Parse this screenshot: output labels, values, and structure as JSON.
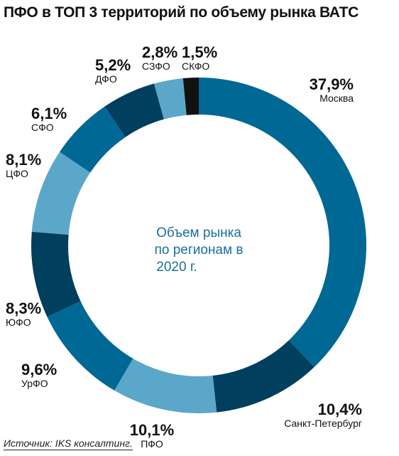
{
  "title": "ПФО в ТОП 3 территорий по объему рынка ВАТС",
  "source": "Источник: IKS консалтинг.",
  "center_text": [
    "Объем рынка",
    "по регионам в",
    "2020 г."
  ],
  "colors": {
    "center_text": "#1a6f9c"
  },
  "chart_data": {
    "type": "pie",
    "title": "ПФО в ТОП 3 территорий по объему рынка ВАТС",
    "categories": [
      "Москва",
      "Санкт-Петербург",
      "ПФО",
      "УрФО",
      "ЮФО",
      "ЦФО",
      "СФО",
      "ДФО",
      "СЗФО",
      "СКФО"
    ],
    "values": [
      37.9,
      10.4,
      10.1,
      9.6,
      8.3,
      8.1,
      6.1,
      5.2,
      2.8,
      1.5
    ],
    "value_labels": [
      "37,9%",
      "10,4%",
      "10,1%",
      "9,6%",
      "8,3%",
      "8,1%",
      "6,1%",
      "5,2%",
      "2,8%",
      "1,5%"
    ],
    "colors": [
      "#006895",
      "#003f5e",
      "#5ba7ca",
      "#006895",
      "#003f5e",
      "#5ba7ca",
      "#006895",
      "#003f5e",
      "#5ba7ca",
      "#111111"
    ],
    "donut": true,
    "legend": "none"
  }
}
